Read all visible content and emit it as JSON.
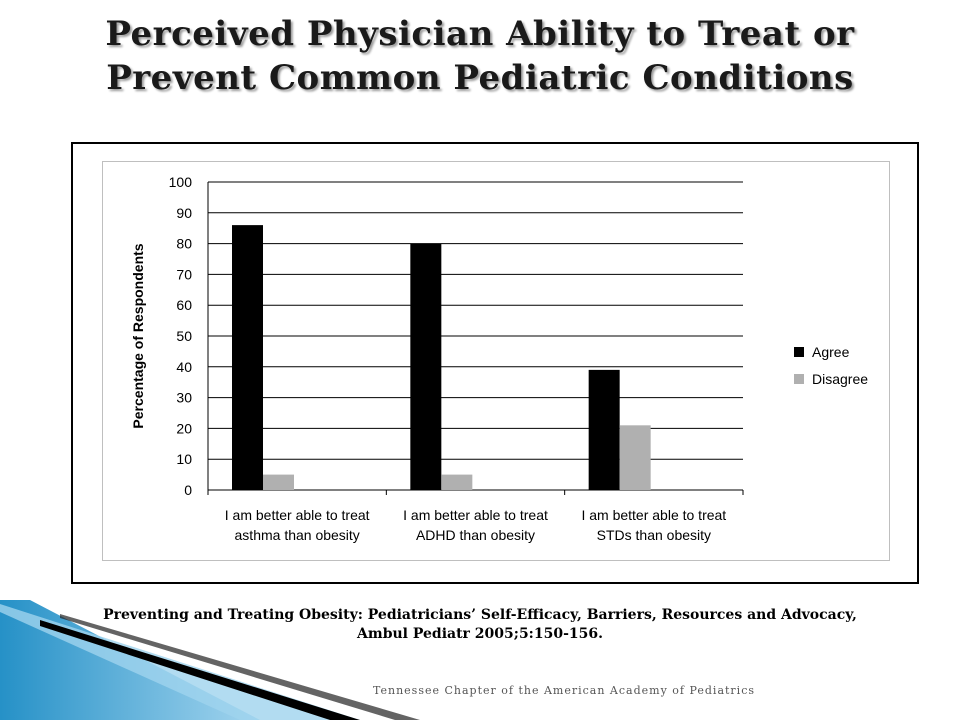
{
  "slide": {
    "title_line1": "Perceived Physician Ability to Treat or",
    "title_line2": "Prevent Common Pediatric Conditions",
    "citation_line1": "Preventing and Treating Obesity: Pediatricians’ Self-Efficacy, Barriers, Resources and Advocacy,",
    "citation_line2": "Ambul Pediatr 2005;5:150-156.",
    "footer": "Tennessee Chapter of the American Academy of Pediatrics"
  },
  "colors": {
    "agree": "#000000",
    "disagree": "#b0b0b0",
    "gridline": "#000000",
    "swoosh_light": "#9fd3ee",
    "swoosh_dark": "#1a8bc4"
  },
  "chart_data": {
    "type": "bar",
    "title": "",
    "xlabel": "",
    "ylabel": "Percentage of Respondents",
    "ylim": [
      0,
      100
    ],
    "yticks": [
      0,
      10,
      20,
      30,
      40,
      50,
      60,
      70,
      80,
      90,
      100
    ],
    "grid": true,
    "legend_position": "right",
    "categories": [
      [
        "I am better able to treat",
        "asthma than obesity"
      ],
      [
        "I am better able to treat",
        "ADHD than obesity"
      ],
      [
        "I am better able to treat",
        "STDs than obesity"
      ]
    ],
    "series": [
      {
        "name": "Agree",
        "values": [
          86,
          80,
          39
        ]
      },
      {
        "name": "Disagree",
        "values": [
          5,
          5,
          21
        ]
      }
    ]
  }
}
